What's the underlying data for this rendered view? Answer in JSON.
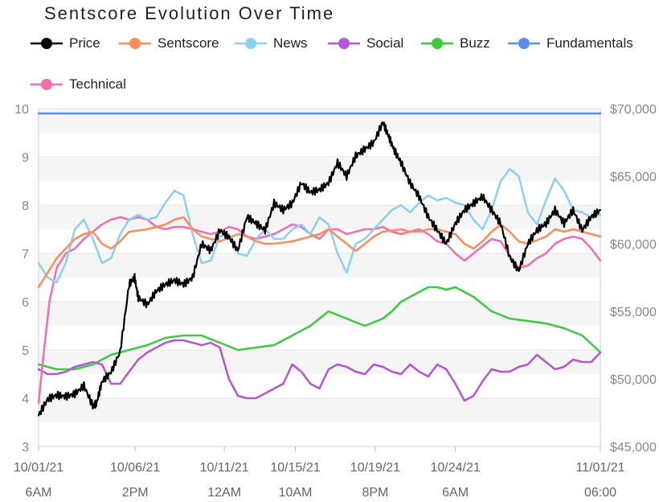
{
  "chart_data": {
    "type": "line",
    "title": "Sentscore Evolution Over Time",
    "y_left": {
      "min": 3,
      "max": 10,
      "ticks": [
        "3",
        "4",
        "5",
        "6",
        "7",
        "8",
        "9",
        "10"
      ]
    },
    "y_right": {
      "min": 45000,
      "max": 70000,
      "ticks": [
        "$45,000",
        "$50,000",
        "$55,000",
        "$60,000",
        "$65,000",
        "$70,000"
      ]
    },
    "x_ticks": [
      {
        "day": 0,
        "line1": "10/01/21",
        "line2": "6AM"
      },
      {
        "day": 5.33,
        "line1": "10/06/21",
        "line2": "2PM"
      },
      {
        "day": 10.25,
        "line1": "10/11/21",
        "line2": "12AM"
      },
      {
        "day": 14.17,
        "line1": "10/15/21",
        "line2": "10AM"
      },
      {
        "day": 18.58,
        "line1": "10/19/21",
        "line2": "8PM"
      },
      {
        "day": 23.0,
        "line1": "10/24/21",
        "line2": "6AM"
      },
      {
        "day": 31.0,
        "line1": "11/01/21",
        "line2": "06:00"
      }
    ],
    "x_range": [
      0,
      31
    ],
    "legend_position": "top",
    "series": [
      {
        "name": "Price",
        "color": "#000000",
        "axis": "right",
        "x": [
          0,
          0.5,
          1,
          1.5,
          2,
          2.5,
          3,
          3.2,
          3.5,
          4,
          4.5,
          5,
          5.3,
          5.5,
          6,
          6.5,
          7,
          7.5,
          8,
          8.5,
          9,
          9.5,
          10,
          10.5,
          11,
          11.5,
          12,
          12.5,
          13,
          13.5,
          14,
          14.5,
          15,
          15.5,
          16,
          16.5,
          17,
          17.5,
          18,
          18.5,
          19,
          19.3,
          19.6,
          20,
          20.5,
          21,
          21.5,
          22,
          22.5,
          23,
          23.5,
          24,
          24.5,
          25,
          25.5,
          26,
          26.5,
          27,
          27.5,
          28,
          28.5,
          29,
          29.5,
          30,
          30.5,
          31
        ],
        "values": [
          47300,
          48500,
          48800,
          48700,
          48900,
          49500,
          48000,
          48200,
          49800,
          50500,
          52000,
          57000,
          57500,
          56000,
          55500,
          56500,
          57000,
          57300,
          57000,
          57500,
          60000,
          59500,
          61000,
          60500,
          59500,
          62000,
          61500,
          61000,
          63000,
          62500,
          63000,
          64500,
          63800,
          64000,
          64500,
          66000,
          65000,
          66500,
          67000,
          67500,
          69000,
          68000,
          67000,
          66000,
          64500,
          63500,
          62000,
          61000,
          60000,
          61500,
          62500,
          63000,
          63500,
          62500,
          61500,
          59000,
          58000,
          60000,
          61000,
          61500,
          62500,
          61500,
          62500,
          61000,
          62000,
          62500
        ]
      },
      {
        "name": "Sentscore",
        "color": "#ff8c5a",
        "axis": "left",
        "x": [
          0,
          1,
          2,
          2.5,
          3,
          3.5,
          4,
          4.5,
          5,
          6,
          6.5,
          7,
          7.5,
          8,
          8.5,
          9,
          9.5,
          10,
          11,
          11.5,
          12,
          12.5,
          13,
          14,
          14.5,
          15,
          15.5,
          16,
          16.5,
          17,
          17.5,
          18,
          18.5,
          19,
          20,
          20.5,
          21,
          21.5,
          22,
          22.5,
          23,
          23.5,
          24,
          24.5,
          25,
          25.5,
          26,
          26.5,
          27,
          28,
          28.5,
          29,
          29.5,
          30,
          30.5,
          31
        ],
        "values": [
          6.3,
          6.9,
          7.3,
          7.4,
          7.45,
          7.2,
          7.1,
          7.25,
          7.45,
          7.5,
          7.55,
          7.6,
          7.7,
          7.75,
          7.5,
          7.35,
          7.3,
          7.25,
          7.4,
          7.35,
          7.25,
          7.2,
          7.2,
          7.25,
          7.3,
          7.35,
          7.4,
          7.5,
          7.35,
          7.2,
          7.05,
          7.2,
          7.35,
          7.45,
          7.5,
          7.45,
          7.45,
          7.5,
          7.5,
          7.45,
          7.4,
          7.2,
          7.1,
          7.25,
          7.45,
          7.6,
          7.45,
          7.25,
          7.2,
          7.35,
          7.5,
          7.45,
          7.5,
          7.45,
          7.4,
          7.35
        ]
      },
      {
        "name": "News",
        "color": "#8dcff5",
        "axis": "left",
        "x": [
          0,
          0.5,
          1,
          1.5,
          2,
          2.5,
          3,
          3.5,
          4,
          4.5,
          5,
          5.5,
          6,
          6.5,
          7,
          7.5,
          8,
          8.5,
          9,
          9.5,
          10,
          10.5,
          11,
          11.5,
          12,
          12.5,
          13,
          13.5,
          14,
          14.5,
          15,
          15.5,
          16,
          16.5,
          17,
          17.5,
          18,
          18.5,
          19,
          19.5,
          20,
          20.5,
          21,
          21.5,
          22,
          22.5,
          23,
          23.5,
          24,
          24.5,
          25,
          25.5,
          26,
          26.5,
          27,
          27.5,
          28,
          28.5,
          29,
          29.5,
          30,
          30.5,
          31
        ],
        "values": [
          6.8,
          6.5,
          6.4,
          6.8,
          7.5,
          7.7,
          7.3,
          6.8,
          6.9,
          7.4,
          7.7,
          7.8,
          7.7,
          7.75,
          8.05,
          8.3,
          8.2,
          7.4,
          6.8,
          6.85,
          7.35,
          7.4,
          7.0,
          6.95,
          7.3,
          7.5,
          7.3,
          7.3,
          7.5,
          7.6,
          7.4,
          7.75,
          7.6,
          7.0,
          6.6,
          7.2,
          7.3,
          7.5,
          7.7,
          7.9,
          8.0,
          7.85,
          8.05,
          8.2,
          8.1,
          8.15,
          8.05,
          8.0,
          7.7,
          7.5,
          7.9,
          8.5,
          8.75,
          8.6,
          7.85,
          7.6,
          8.1,
          8.55,
          8.3,
          7.9,
          7.85,
          7.75,
          7.8
        ]
      },
      {
        "name": "Social",
        "color": "#b457d6",
        "axis": "left",
        "x": [
          0,
          0.5,
          1,
          1.5,
          2,
          2.5,
          3,
          3.5,
          4,
          4.5,
          5,
          5.5,
          6,
          6.5,
          7,
          7.5,
          8,
          8.5,
          9,
          9.5,
          10,
          10.5,
          11,
          11.5,
          12,
          12.5,
          13,
          13.5,
          14,
          14.5,
          15,
          15.5,
          16,
          16.5,
          17,
          17.5,
          18,
          18.5,
          19,
          19.5,
          20,
          20.5,
          21,
          21.5,
          22,
          22.5,
          23,
          23.5,
          24,
          24.5,
          25,
          25.5,
          26,
          26.5,
          27,
          27.5,
          28,
          28.5,
          29,
          29.5,
          30,
          30.5,
          31
        ],
        "values": [
          4.6,
          4.5,
          4.5,
          4.55,
          4.65,
          4.7,
          4.75,
          4.7,
          4.3,
          4.3,
          4.55,
          4.8,
          4.95,
          5.05,
          5.15,
          5.2,
          5.2,
          5.15,
          5.1,
          5.15,
          5.05,
          4.4,
          4.05,
          4.0,
          4.0,
          4.1,
          4.2,
          4.3,
          4.7,
          4.55,
          4.3,
          4.2,
          4.6,
          4.7,
          4.65,
          4.55,
          4.5,
          4.7,
          4.65,
          4.55,
          4.5,
          4.7,
          4.55,
          4.45,
          4.7,
          4.6,
          4.3,
          3.95,
          4.05,
          4.35,
          4.6,
          4.55,
          4.55,
          4.65,
          4.7,
          4.9,
          4.75,
          4.6,
          4.65,
          4.8,
          4.75,
          4.75,
          4.95
        ]
      },
      {
        "name": "Buzz",
        "color": "#3ec93e",
        "axis": "left",
        "x": [
          0,
          1,
          2,
          3,
          4,
          5,
          6,
          7,
          8,
          9,
          10,
          11,
          12,
          13,
          14,
          15,
          16,
          17,
          18,
          19,
          19.5,
          20,
          20.5,
          21,
          21.5,
          22,
          22.5,
          23,
          24,
          25,
          26,
          27,
          28,
          29,
          30,
          31
        ],
        "values": [
          4.7,
          4.6,
          4.6,
          4.7,
          4.9,
          5.0,
          5.1,
          5.25,
          5.3,
          5.3,
          5.15,
          5.0,
          5.05,
          5.1,
          5.3,
          5.5,
          5.8,
          5.65,
          5.5,
          5.65,
          5.8,
          6.0,
          6.1,
          6.2,
          6.3,
          6.3,
          6.25,
          6.3,
          6.1,
          5.8,
          5.65,
          5.6,
          5.55,
          5.45,
          5.3,
          4.95
        ]
      },
      {
        "name": "Fundamentals",
        "color": "#5b8fe6",
        "axis": "left",
        "x": [
          0,
          31
        ],
        "values": [
          9.9,
          9.9
        ]
      },
      {
        "name": "Technical",
        "color": "#f26eb1",
        "axis": "left",
        "x": [
          0,
          0.3,
          0.6,
          1,
          1.5,
          2,
          2.5,
          3,
          3.5,
          4,
          4.5,
          5,
          5.5,
          6,
          6.5,
          7,
          7.5,
          8,
          8.5,
          9,
          9.5,
          10,
          10.5,
          11,
          11.5,
          12,
          12.5,
          13,
          13.5,
          14,
          14.5,
          15,
          15.5,
          16,
          16.5,
          17,
          17.5,
          18,
          18.5,
          19,
          19.5,
          20,
          20.5,
          21,
          21.5,
          22,
          22.5,
          23,
          23.5,
          24,
          24.5,
          25,
          25.5,
          26,
          26.5,
          27,
          27.5,
          28,
          28.5,
          29,
          29.5,
          30,
          30.5,
          31
        ],
        "values": [
          3.9,
          5.0,
          6.0,
          6.7,
          7.0,
          7.1,
          7.3,
          7.45,
          7.6,
          7.7,
          7.75,
          7.7,
          7.75,
          7.7,
          7.55,
          7.5,
          7.55,
          7.55,
          7.5,
          7.45,
          7.4,
          7.45,
          7.55,
          7.5,
          7.35,
          7.3,
          7.35,
          7.4,
          7.5,
          7.6,
          7.55,
          7.4,
          7.3,
          7.5,
          7.5,
          7.4,
          7.45,
          7.5,
          7.5,
          7.55,
          7.45,
          7.4,
          7.45,
          7.5,
          7.4,
          7.25,
          7.2,
          7.0,
          6.85,
          7.0,
          7.15,
          7.3,
          7.25,
          6.95,
          6.7,
          6.75,
          6.9,
          7.0,
          7.2,
          7.3,
          7.35,
          7.3,
          7.1,
          6.85
        ]
      }
    ]
  }
}
